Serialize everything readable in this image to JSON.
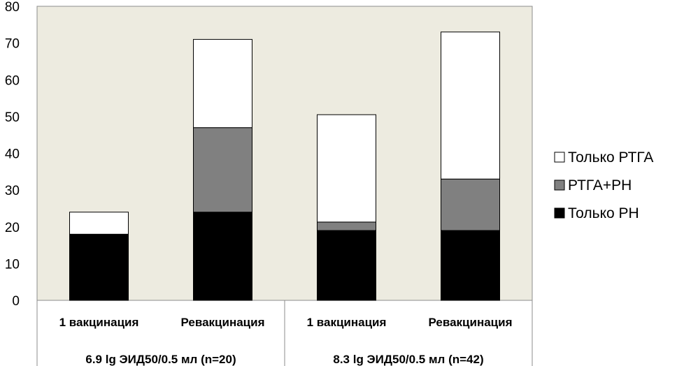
{
  "chart_data": {
    "type": "bar",
    "stacked": true,
    "categories": [
      "1 вакцинация",
      "Ревакцинация",
      "1 вакцинация",
      "Ревакцинация"
    ],
    "groups": [
      {
        "label": "6.9 lg ЭИД50/0.5 мл (n=20)",
        "categories": [
          0,
          1
        ]
      },
      {
        "label": "8.3 lg ЭИД50/0.5 мл (n=42)",
        "categories": [
          2,
          3
        ]
      }
    ],
    "series": [
      {
        "name": "Только РН",
        "color": "#000000",
        "values": [
          18,
          24,
          19,
          19
        ]
      },
      {
        "name": "РТГА+РН",
        "color": "#808080",
        "values": [
          0,
          23,
          2.3,
          14
        ]
      },
      {
        "name": "Только РТГА",
        "color": "#ffffff",
        "values": [
          6,
          24,
          29.2,
          40
        ]
      }
    ],
    "yticks": [
      "0",
      "10",
      "20",
      "30",
      "40",
      "50",
      "60",
      "70",
      "80"
    ],
    "ylim": [
      0,
      80
    ],
    "grid": false,
    "plot_background": "#edebe0",
    "legend_position": "right",
    "legend_order": [
      2,
      1,
      0
    ],
    "title": "",
    "xlabel": "",
    "ylabel": ""
  }
}
